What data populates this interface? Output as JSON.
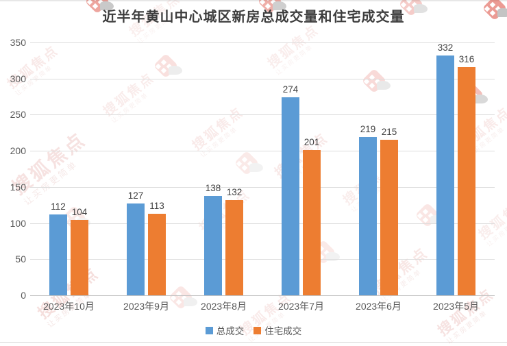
{
  "title": "近半年黄山中心城区新房总成交量和住宅成交量",
  "watermark": {
    "brand": "搜狐焦点",
    "slogan": "让买房更简单",
    "logo_color": "#d93a2b"
  },
  "chart_data": {
    "type": "bar",
    "title": "近半年黄山中心城区新房总成交量和住宅成交量",
    "categories": [
      "2023年10月",
      "2023年9月",
      "2023年8月",
      "2023年7月",
      "2023年6月",
      "2023年5月"
    ],
    "series": [
      {
        "name": "总成交",
        "color": "#5B9BD5",
        "values": [
          112,
          127,
          138,
          274,
          219,
          332
        ]
      },
      {
        "name": "住宅成交",
        "color": "#ED7D31",
        "values": [
          104,
          113,
          132,
          201,
          215,
          316
        ]
      }
    ],
    "xlabel": "",
    "ylabel": "",
    "ylim": [
      0,
      350
    ],
    "yticks": [
      0,
      50,
      100,
      150,
      200,
      250,
      300,
      350
    ],
    "grid": true,
    "data_labels": true,
    "legend_position": "bottom",
    "colors": {
      "grid": "#dcdcdc",
      "baseline": "#c3c3c3",
      "axis_text": "#595959",
      "value_label_text": "#404040",
      "title_text": "#3d3d3d"
    }
  }
}
